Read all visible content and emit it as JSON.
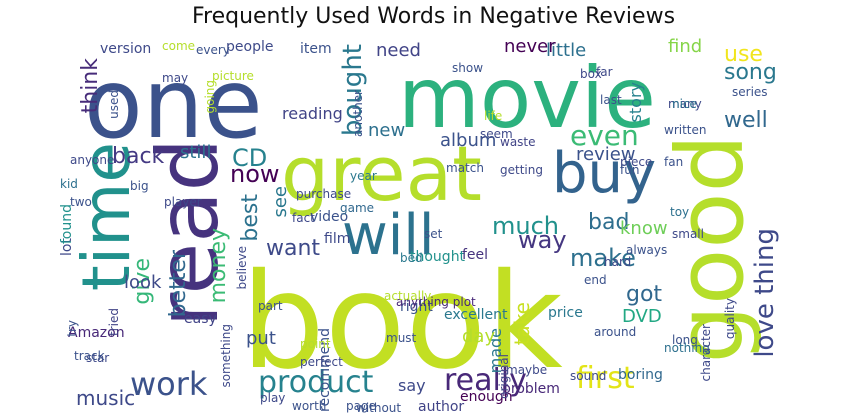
{
  "title": "Frequently Used Words in Negative Reviews",
  "words": [
    {
      "text": "book",
      "color": "#c2df23"
    },
    {
      "text": "movie",
      "color": "#2cb17e"
    },
    {
      "text": "one",
      "color": "#3b528b"
    },
    {
      "text": "great",
      "color": "#b5de2b"
    },
    {
      "text": "good",
      "color": "#b5de2b"
    },
    {
      "text": "read",
      "color": "#46337e"
    },
    {
      "text": "time",
      "color": "#21918c"
    },
    {
      "text": "will",
      "color": "#2c728e"
    },
    {
      "text": "buy",
      "color": "#33638d"
    },
    {
      "text": "work",
      "color": "#3b528b"
    },
    {
      "text": "product",
      "color": "#26828e"
    },
    {
      "text": "really",
      "color": "#482878"
    },
    {
      "text": "first",
      "color": "#e3e418"
    },
    {
      "text": "even",
      "color": "#3bbb75"
    },
    {
      "text": "make",
      "color": "#2d708e"
    },
    {
      "text": "love thing",
      "color": "#3e4989"
    },
    {
      "text": "bought",
      "color": "#2a788e"
    },
    {
      "text": "much",
      "color": "#21918c"
    },
    {
      "text": "way",
      "color": "#453781"
    },
    {
      "text": "want",
      "color": "#3e4a89"
    },
    {
      "text": "now",
      "color": "#440154"
    },
    {
      "text": "best",
      "color": "#2c728e"
    },
    {
      "text": "money",
      "color": "#3bbb75"
    },
    {
      "text": "better",
      "color": "#31688e"
    },
    {
      "text": "give",
      "color": "#35b779"
    },
    {
      "text": "music",
      "color": "#3e4989"
    },
    {
      "text": "back",
      "color": "#443983"
    },
    {
      "text": "think",
      "color": "#472c7a"
    },
    {
      "text": "use",
      "color": "#f1e51d"
    },
    {
      "text": "song",
      "color": "#2a788e"
    },
    {
      "text": "well",
      "color": "#31688e"
    },
    {
      "text": "review",
      "color": "#3b528b"
    },
    {
      "text": "bad",
      "color": "#2e6e8e"
    },
    {
      "text": "know",
      "color": "#6ece58"
    },
    {
      "text": "got",
      "color": "#31688e"
    },
    {
      "text": "take",
      "color": "#c8e020"
    },
    {
      "text": "made",
      "color": "#2a788e"
    },
    {
      "text": "DVD",
      "color": "#22a884"
    },
    {
      "text": "say",
      "color": "#3e4989"
    },
    {
      "text": "put",
      "color": "#3b528b"
    },
    {
      "text": "day",
      "color": "#b5de2b"
    },
    {
      "text": "look",
      "color": "#3e4a89"
    },
    {
      "text": "little",
      "color": "#2d708e"
    },
    {
      "text": "need",
      "color": "#414487"
    },
    {
      "text": "never",
      "color": "#440154"
    },
    {
      "text": "find",
      "color": "#86d549"
    },
    {
      "text": "story",
      "color": "#26828e"
    },
    {
      "text": "CD",
      "color": "#26828e"
    },
    {
      "text": "still",
      "color": "#2c728e"
    },
    {
      "text": "new",
      "color": "#2d708e"
    },
    {
      "text": "album",
      "color": "#3b528b"
    },
    {
      "text": "see",
      "color": "#2a788e"
    },
    {
      "text": "reading",
      "color": "#414487"
    },
    {
      "text": "people",
      "color": "#3e4a89"
    },
    {
      "text": "item",
      "color": "#3b528b"
    },
    {
      "text": "version",
      "color": "#3e4989"
    },
    {
      "text": "come",
      "color": "#b5de2b"
    },
    {
      "text": "Amazon",
      "color": "#482878"
    },
    {
      "text": "easy",
      "color": "#414487"
    },
    {
      "text": "recommend",
      "color": "#3b528b"
    },
    {
      "text": "something",
      "color": "#3e4989"
    },
    {
      "text": "thought",
      "color": "#21918c"
    },
    {
      "text": "feel",
      "color": "#46337e"
    },
    {
      "text": "price",
      "color": "#2a788e"
    },
    {
      "text": "film",
      "color": "#3e4989"
    },
    {
      "text": "video",
      "color": "#3b528b"
    },
    {
      "text": "game",
      "color": "#31688e"
    },
    {
      "text": "year",
      "color": "#2a788e"
    },
    {
      "text": "lot",
      "color": "#3e4989"
    },
    {
      "text": "found",
      "color": "#21918c"
    },
    {
      "text": "right",
      "color": "#3b528b"
    },
    {
      "text": "must",
      "color": "#3b528b"
    },
    {
      "text": "author",
      "color": "#414487"
    },
    {
      "text": "enough",
      "color": "#440154"
    },
    {
      "text": "problem",
      "color": "#482878"
    },
    {
      "text": "without",
      "color": "#3b528b"
    },
    {
      "text": "boring",
      "color": "#31688e"
    },
    {
      "text": "nothing",
      "color": "#2d708e"
    },
    {
      "text": "character",
      "color": "#3e4989"
    },
    {
      "text": "long",
      "color": "#3b528b"
    },
    {
      "text": "excellent",
      "color": "#2a788e"
    },
    {
      "text": "another",
      "color": "#3b528b"
    },
    {
      "text": "seem",
      "color": "#3e4989"
    },
    {
      "text": "anything plot",
      "color": "#482878"
    },
    {
      "text": "bed",
      "color": "#2a788e"
    },
    {
      "text": "set",
      "color": "#3b528b"
    },
    {
      "text": "kid",
      "color": "#2d708e"
    },
    {
      "text": "fan",
      "color": "#3b528b"
    },
    {
      "text": "toy",
      "color": "#2d708e"
    },
    {
      "text": "small",
      "color": "#3e4989"
    },
    {
      "text": "quality",
      "color": "#3e4989"
    },
    {
      "text": "many",
      "color": "#3e4989"
    },
    {
      "text": "series",
      "color": "#3b528b"
    },
    {
      "text": "nice",
      "color": "#2d708e"
    },
    {
      "text": "life",
      "color": "#b5de2b"
    },
    {
      "text": "two",
      "color": "#3b528b"
    },
    {
      "text": "anyone",
      "color": "#3e4989"
    },
    {
      "text": "waste",
      "color": "#414487"
    },
    {
      "text": "written",
      "color": "#3b528b"
    },
    {
      "text": "piece",
      "color": "#3e4989"
    },
    {
      "text": "end",
      "color": "#3b528b"
    },
    {
      "text": "maybe",
      "color": "#3e4989"
    },
    {
      "text": "point",
      "color": "#b5de2b"
    },
    {
      "text": "perfect",
      "color": "#3e4989"
    },
    {
      "text": "try",
      "color": "#3b528b"
    },
    {
      "text": "star",
      "color": "#3e4989"
    },
    {
      "text": "track",
      "color": "#3b528b"
    },
    {
      "text": "tried",
      "color": "#414487"
    },
    {
      "text": "play",
      "color": "#3e4989"
    },
    {
      "text": "worth",
      "color": "#3b528b"
    },
    {
      "text": "page",
      "color": "#3b528b"
    },
    {
      "text": "original",
      "color": "#414487"
    },
    {
      "text": "sound",
      "color": "#3e4989"
    },
    {
      "text": "fun",
      "color": "#3b528b"
    },
    {
      "text": "show",
      "color": "#3b528b"
    },
    {
      "text": "far",
      "color": "#3e4989"
    },
    {
      "text": "last",
      "color": "#3b528b"
    },
    {
      "text": "picture",
      "color": "#b5de2b"
    },
    {
      "text": "may",
      "color": "#3e4989"
    },
    {
      "text": "used",
      "color": "#3b528b"
    },
    {
      "text": "going",
      "color": "#b5de2b"
    },
    {
      "text": "purchase",
      "color": "#3e4989"
    },
    {
      "text": "match",
      "color": "#3b528b"
    },
    {
      "text": "getting",
      "color": "#3e4989"
    },
    {
      "text": "always",
      "color": "#3b528b"
    },
    {
      "text": "hard",
      "color": "#3e4989"
    },
    {
      "text": "around",
      "color": "#3b528b"
    },
    {
      "text": "player",
      "color": "#3e4989"
    },
    {
      "text": "big",
      "color": "#3b528b"
    },
    {
      "text": "fact",
      "color": "#3e4989"
    },
    {
      "text": "part",
      "color": "#3b528b"
    },
    {
      "text": "actually",
      "color": "#b5de2b"
    },
    {
      "text": "believe",
      "color": "#3e4989"
    },
    {
      "text": "every",
      "color": "#3b528b"
    },
    {
      "text": "box",
      "color": "#3e4989"
    }
  ]
}
